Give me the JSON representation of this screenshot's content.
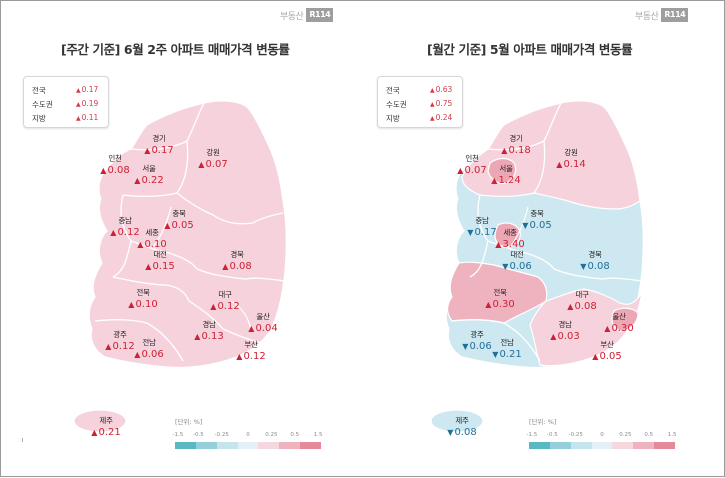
{
  "brand": {
    "text": "부동산",
    "box": "R114"
  },
  "colors": {
    "up": "#cc2236",
    "down": "#1f6f99"
  },
  "panels": [
    {
      "title": "[주간 기준] 6월 2주 아파트 매매가격 변동률",
      "summary": [
        {
          "label": "전국",
          "value": "0.17"
        },
        {
          "label": "수도권",
          "value": "0.19"
        },
        {
          "label": "지방",
          "value": "0.11"
        }
      ],
      "regions": [
        {
          "name": "경기",
          "value": "0.17",
          "dir": "up"
        },
        {
          "name": "강원",
          "value": "0.07",
          "dir": "up"
        },
        {
          "name": "인천",
          "value": "0.08",
          "dir": "up"
        },
        {
          "name": "서울",
          "value": "0.22",
          "dir": "up"
        },
        {
          "name": "충남",
          "value": "0.12",
          "dir": "up"
        },
        {
          "name": "충북",
          "value": "0.05",
          "dir": "up"
        },
        {
          "name": "세종",
          "value": "0.10",
          "dir": "up"
        },
        {
          "name": "대전",
          "value": "0.15",
          "dir": "up"
        },
        {
          "name": "경북",
          "value": "0.08",
          "dir": "up"
        },
        {
          "name": "전북",
          "value": "0.10",
          "dir": "up"
        },
        {
          "name": "대구",
          "value": "0.12",
          "dir": "up"
        },
        {
          "name": "울산",
          "value": "0.04",
          "dir": "up"
        },
        {
          "name": "광주",
          "value": "0.12",
          "dir": "up"
        },
        {
          "name": "전남",
          "value": "0.06",
          "dir": "up"
        },
        {
          "name": "경남",
          "value": "0.13",
          "dir": "up"
        },
        {
          "name": "부산",
          "value": "0.12",
          "dir": "up"
        },
        {
          "name": "제주",
          "value": "0.21",
          "dir": "up"
        }
      ],
      "scale_unit": "[단위: %]"
    },
    {
      "title": "[월간 기준] 5월 아파트 매매가격 변동률",
      "summary": [
        {
          "label": "전국",
          "value": "0.63"
        },
        {
          "label": "수도권",
          "value": "0.75"
        },
        {
          "label": "지방",
          "value": "0.24"
        }
      ],
      "regions": [
        {
          "name": "경기",
          "value": "0.18",
          "dir": "up"
        },
        {
          "name": "강원",
          "value": "0.14",
          "dir": "up"
        },
        {
          "name": "인천",
          "value": "0.07",
          "dir": "up"
        },
        {
          "name": "서울",
          "value": "1.24",
          "dir": "up"
        },
        {
          "name": "충남",
          "value": "0.17",
          "dir": "down"
        },
        {
          "name": "충북",
          "value": "0.05",
          "dir": "down"
        },
        {
          "name": "세종",
          "value": "3.40",
          "dir": "up"
        },
        {
          "name": "대전",
          "value": "0.06",
          "dir": "down"
        },
        {
          "name": "경북",
          "value": "0.08",
          "dir": "down"
        },
        {
          "name": "전북",
          "value": "0.30",
          "dir": "up"
        },
        {
          "name": "대구",
          "value": "0.08",
          "dir": "up"
        },
        {
          "name": "울산",
          "value": "0.30",
          "dir": "up"
        },
        {
          "name": "광주",
          "value": "0.06",
          "dir": "down"
        },
        {
          "name": "전남",
          "value": "0.21",
          "dir": "down"
        },
        {
          "name": "경남",
          "value": "0.03",
          "dir": "up"
        },
        {
          "name": "부산",
          "value": "0.05",
          "dir": "up"
        },
        {
          "name": "제주",
          "value": "0.08",
          "dir": "down"
        }
      ],
      "scale_unit": "[단위: %]"
    }
  ],
  "scale_ticks": [
    "-1.5",
    "-0.5",
    "-0.25",
    "0",
    "0.25",
    "0.5",
    "1.5"
  ],
  "scale_colors": [
    "#5ab7c4",
    "#95d0da",
    "#c4e5ee",
    "#e3f1f6",
    "#f6d7de",
    "#efb3bf",
    "#e48a9b"
  ]
}
